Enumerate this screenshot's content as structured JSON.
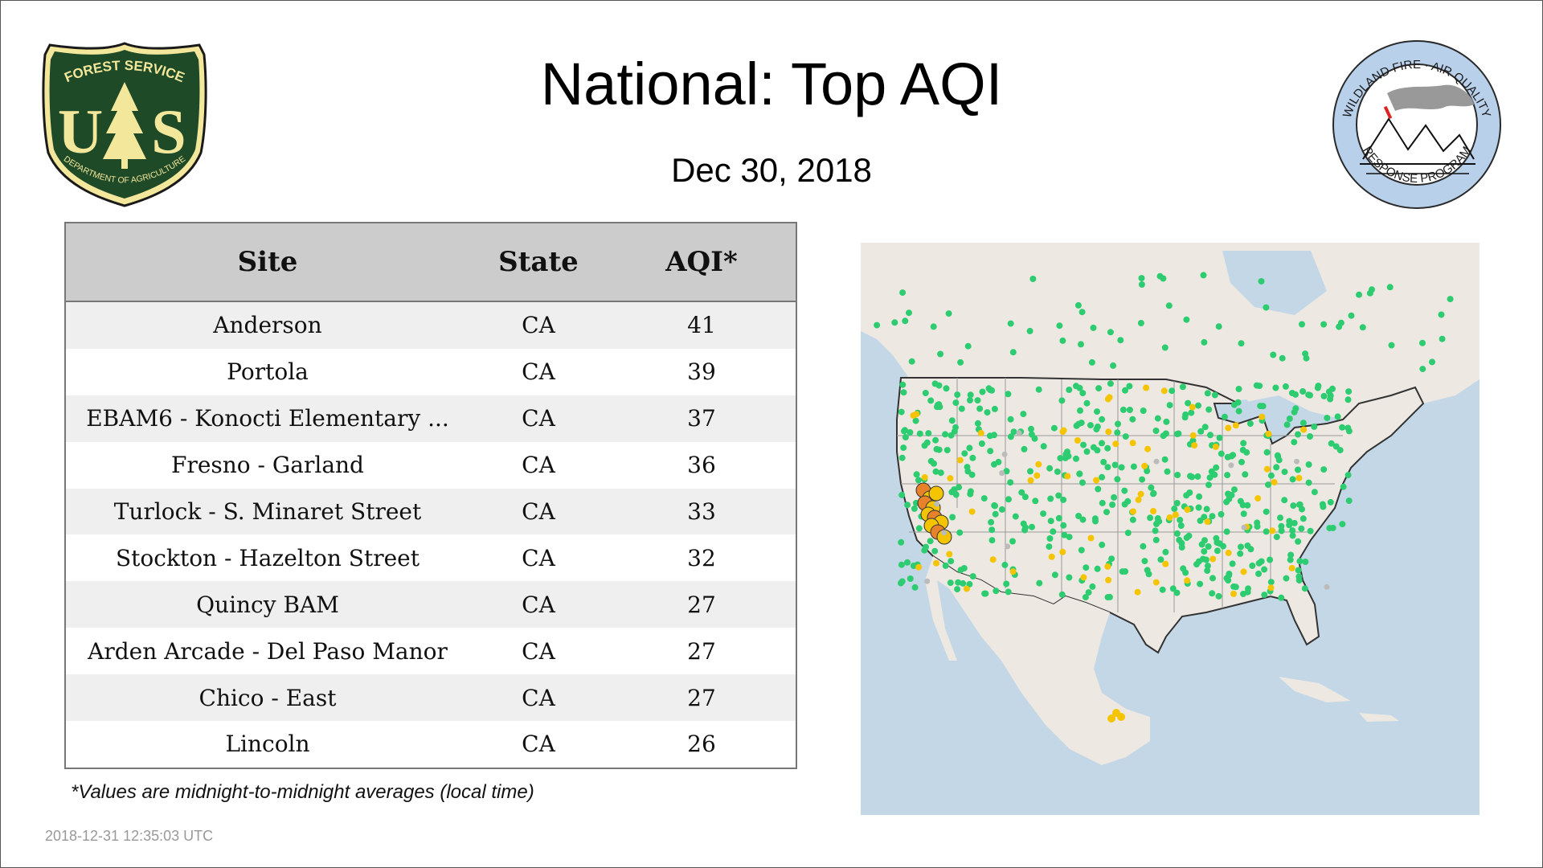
{
  "title": "National: Top AQI",
  "subtitle": "Dec 30, 2018",
  "logos": {
    "forest_service_text": [
      "FOREST SERVICE",
      "U",
      "S",
      "DEPARTMENT OF AGRICULTURE"
    ],
    "wildland_text": [
      "WILDLAND FIRE · AIR QUALITY",
      "RESPONSE PROGRAM"
    ]
  },
  "table": {
    "headers": [
      "Site",
      "State",
      "AQI*"
    ],
    "rows": [
      [
        "Anderson",
        "CA",
        "41"
      ],
      [
        "Portola",
        "CA",
        "39"
      ],
      [
        "EBAM6 - Konocti Elementary ...",
        "CA",
        "37"
      ],
      [
        "Fresno - Garland",
        "CA",
        "36"
      ],
      [
        "Turlock - S. Minaret Street",
        "CA",
        "33"
      ],
      [
        "Stockton - Hazelton Street",
        "CA",
        "32"
      ],
      [
        "Quincy BAM",
        "CA",
        "27"
      ],
      [
        "Arden Arcade - Del Paso Manor",
        "CA",
        "27"
      ],
      [
        "Chico - East",
        "CA",
        "27"
      ],
      [
        "Lincoln",
        "CA",
        "26"
      ]
    ]
  },
  "footnote": "*Values are midnight-to-midnight averages (local time)",
  "timestamp": "2018-12-31 12:35:03 UTC",
  "colors": {
    "good": "#2ecc71",
    "moderate": "#f5c400",
    "usg": "#e8822a",
    "nodata": "#bbbbbb",
    "ocean": "#c4d7e6",
    "land": "#ede9e2"
  }
}
